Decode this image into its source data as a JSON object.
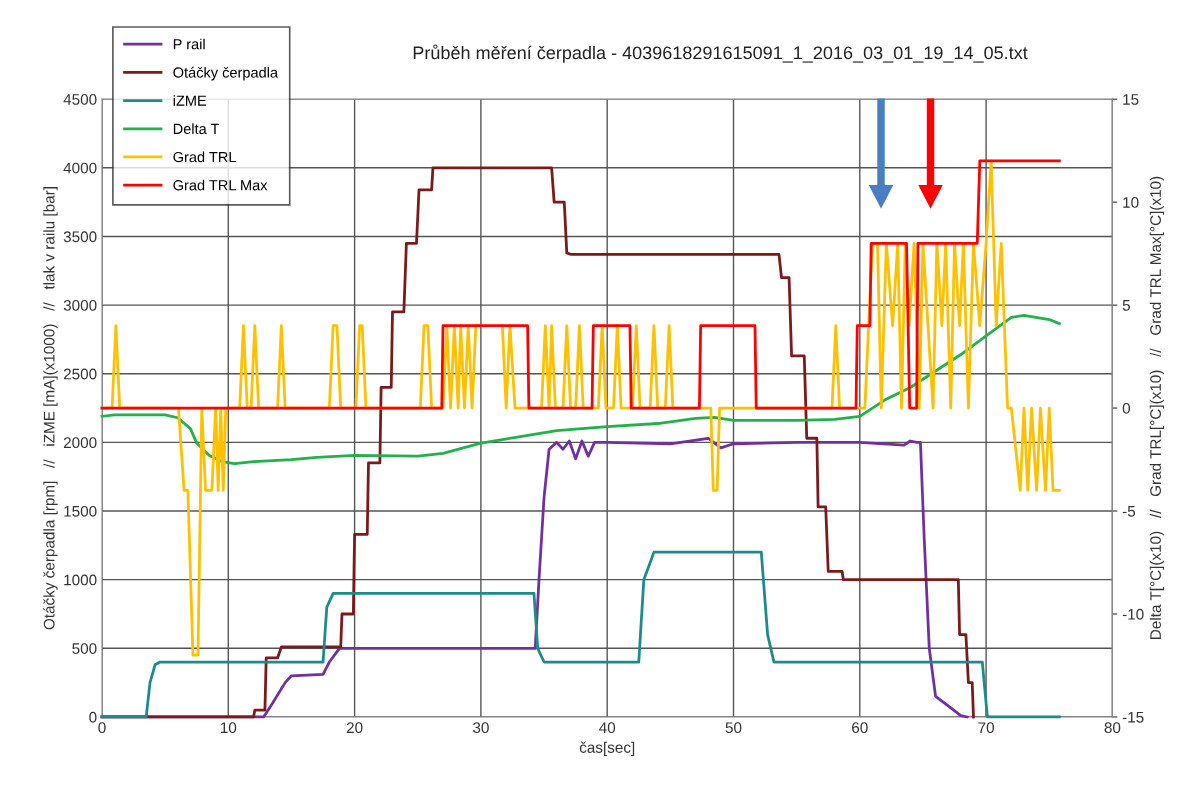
{
  "chart_data": {
    "type": "line",
    "title": "Průběh měření čerpadla - 4039618291615091_1_2016_03_01_19_14_05.txt",
    "xlabel": "čas[sec]",
    "ylabel": "Otáčky čerpadla [rpm]   //   iZME [mA](x1000)   //   tlak v railu [bar]",
    "y2label": "Delta T[°C](x10)   //   Grad TRL[°C](x10)   //   Grad TRL Max[°C](x10)",
    "xlim": [
      0,
      80
    ],
    "xticks": [
      0,
      10,
      20,
      30,
      40,
      50,
      60,
      70,
      80
    ],
    "ylim": [
      0,
      4500
    ],
    "yticks": [
      0,
      500,
      1000,
      1500,
      2000,
      2500,
      3000,
      3500,
      4000,
      4500
    ],
    "y2lim": [
      -15,
      15
    ],
    "y2ticks": [
      -15,
      -10,
      -5,
      0,
      5,
      10,
      15
    ],
    "grid": true,
    "legend": "top left",
    "marker": "none",
    "line_style": "solid",
    "series": [
      {
        "name": "P rail",
        "color": "#7030a0",
        "x": [
          0,
          12.8,
          13.5,
          14.5,
          15,
          17.5,
          18,
          18.8,
          25,
          30,
          34.3,
          34.6,
          35,
          35.4,
          36,
          36.5,
          37,
          37.5,
          38,
          38.5,
          39,
          40,
          45,
          48,
          49,
          50,
          55,
          60,
          63.5,
          64,
          64.5,
          64.8,
          65.1,
          65.5,
          66,
          67,
          68,
          68.5
        ],
        "values": [
          0,
          0,
          100,
          250,
          300,
          310,
          400,
          500,
          500,
          500,
          500,
          1000,
          1600,
          1950,
          2000,
          1950,
          2010,
          1880,
          2010,
          1900,
          2000,
          2000,
          1990,
          2030,
          1960,
          1990,
          2000,
          2000,
          1980,
          2010,
          2000,
          2000,
          1300,
          500,
          150,
          80,
          10,
          0
        ]
      },
      {
        "name": "Otáčky čerpadla",
        "color": "#7b1a1a",
        "x": [
          0,
          12,
          12.1,
          12.9,
          13,
          13.9,
          14.2,
          18.9,
          19,
          19.9,
          20,
          21,
          21.1,
          22,
          22.1,
          22.9,
          23,
          23.9,
          24.1,
          24.9,
          25.1,
          26.1,
          26.2,
          35.6,
          35.8,
          36.6,
          36.8,
          37.1,
          53.6,
          53.8,
          54.4,
          54.6,
          55.6,
          55.8,
          56.6,
          56.7,
          57.3,
          57.5,
          58.6,
          58.7,
          67.8,
          67.9,
          68.4,
          68.6,
          68.9,
          69
        ],
        "values": [
          0,
          0,
          50,
          50,
          430,
          430,
          510,
          510,
          750,
          750,
          1330,
          1330,
          1850,
          1850,
          2400,
          2400,
          2950,
          2950,
          3450,
          3450,
          3840,
          3840,
          4000,
          4000,
          3750,
          3750,
          3380,
          3370,
          3370,
          3200,
          3200,
          2630,
          2630,
          2030,
          2030,
          1530,
          1530,
          1060,
          1060,
          1000,
          1000,
          600,
          600,
          250,
          250,
          0
        ]
      },
      {
        "name": "iZME",
        "color": "#1f8a8a",
        "x": [
          0,
          3.5,
          3.8,
          4.2,
          4.6,
          17.5,
          17.8,
          18.3,
          34.2,
          34.5,
          35,
          42.5,
          42.9,
          43.7,
          52.2,
          52.7,
          53.2,
          69.7,
          70.1,
          75.8
        ],
        "values": [
          0,
          0,
          250,
          380,
          400,
          400,
          800,
          900,
          900,
          500,
          400,
          400,
          1000,
          1200,
          1200,
          600,
          400,
          400,
          0,
          0
        ]
      },
      {
        "name": "Delta T",
        "color": "#22b14c",
        "axis": "y2",
        "x": [
          0,
          1,
          3,
          5,
          6,
          7,
          7.5,
          8.5,
          9.5,
          10.5,
          12,
          15,
          17,
          20,
          25,
          27,
          30,
          33,
          36,
          40,
          44,
          47,
          48.5,
          50,
          55,
          58,
          60,
          61,
          62,
          64,
          66,
          68,
          70,
          72,
          73,
          75,
          75.8
        ],
        "values": [
          -0.4,
          -0.33,
          -0.33,
          -0.33,
          -0.47,
          -1.0,
          -1.7,
          -2.3,
          -2.6,
          -2.7,
          -2.6,
          -2.5,
          -2.4,
          -2.3,
          -2.33,
          -2.2,
          -1.7,
          -1.4,
          -1.1,
          -0.9,
          -0.75,
          -0.5,
          -0.45,
          -0.6,
          -0.6,
          -0.55,
          -0.4,
          0,
          0.4,
          1.0,
          1.8,
          2.6,
          3.5,
          4.4,
          4.5,
          4.3,
          4.1
        ]
      },
      {
        "name": "Grad TRL",
        "color": "#ffc000",
        "axis": "y2",
        "x": [
          0,
          0.8,
          1.1,
          1.4,
          6.05,
          6.5,
          6.8,
          7.2,
          7.6,
          7.9,
          8.2,
          8.7,
          9.0,
          9.2,
          9.4,
          9.6,
          9.8,
          10.9,
          11.2,
          11.5,
          11.8,
          12.1,
          12.4,
          13.9,
          14.2,
          14.5,
          18.0,
          18.3,
          18.6,
          18.9,
          20.1,
          20.4,
          20.6,
          20.9,
          25.2,
          25.5,
          25.8,
          26.1,
          27.0,
          27.3,
          27.6,
          27.9,
          28.2,
          28.4,
          28.7,
          29.0,
          29.3,
          29.6,
          29.9,
          30.5,
          31.7,
          32.0,
          32.3,
          32.7,
          33.0,
          34.8,
          35.1,
          35.4,
          35.6,
          35.9,
          36.5,
          36.8,
          37.1,
          37.5,
          37.8,
          38.1,
          39.3,
          39.6,
          39.9,
          40.5,
          40.8,
          41.1,
          42.0,
          42.3,
          42.6,
          43.4,
          43.7,
          44.0,
          44.6,
          44.9,
          45.2,
          48.2,
          48.4,
          48.7,
          48.9,
          57.8,
          58.1,
          58.4,
          60.4,
          60.7,
          61.0,
          61.4,
          61.7,
          62.1,
          62.6,
          63.0,
          63.3,
          63.6,
          63.9,
          64.3,
          64.7,
          65.0,
          65.4,
          65.8,
          66.1,
          66.5,
          66.8,
          67.2,
          67.5,
          67.9,
          68.2,
          68.6,
          69.0,
          69.5,
          70.0,
          70.4,
          70.8,
          71.2,
          71.7,
          72.0,
          72.7,
          73.0,
          73.3,
          73.6,
          74.0,
          74.3,
          74.7,
          75.0,
          75.3,
          75.8
        ],
        "values": [
          0,
          0,
          4,
          0,
          0,
          -4,
          -4,
          -12,
          -12,
          0,
          -4,
          -4,
          0,
          -4,
          0,
          -4,
          0,
          0,
          4,
          0,
          0,
          4,
          0,
          0,
          4,
          0,
          0,
          4,
          4,
          0,
          0,
          4,
          4,
          0,
          0,
          4,
          4,
          0,
          0,
          4,
          0,
          4,
          0,
          4,
          0,
          4,
          0,
          4,
          4,
          null,
          4,
          0,
          4,
          0,
          0,
          0,
          4,
          0,
          4,
          0,
          0,
          4,
          0,
          0,
          4,
          0,
          0,
          4,
          0,
          0,
          4,
          0,
          0,
          4,
          0,
          0,
          4,
          0,
          0,
          4,
          0,
          0,
          -4,
          -4,
          0,
          0,
          4,
          0,
          0,
          4,
          8,
          8,
          0,
          8,
          4,
          8,
          0,
          8,
          4,
          8,
          0,
          8,
          4,
          0,
          8,
          4,
          8,
          0,
          8,
          4,
          8,
          0,
          8,
          4,
          8,
          12,
          4,
          8,
          0,
          0,
          -4,
          0,
          -4,
          0,
          -4,
          0,
          -4,
          0,
          -4,
          -4
        ]
      },
      {
        "name": "Grad TRL Max",
        "color": "#ff0000",
        "axis": "y2",
        "x": [
          0,
          26.9,
          27.0,
          33.7,
          33.8,
          38.8,
          38.9,
          41.8,
          41.9,
          47.3,
          47.4,
          51.7,
          51.8,
          59.7,
          59.8,
          60.8,
          60.9,
          63.7,
          63.95,
          64.5,
          64.6,
          69.3,
          69.5,
          75.8
        ],
        "values": [
          0,
          0,
          4,
          4,
          0,
          0,
          4,
          4,
          0,
          0,
          4,
          4,
          0,
          0,
          4,
          4,
          8,
          8,
          0,
          0,
          8,
          8,
          12,
          12
        ]
      }
    ]
  }
}
